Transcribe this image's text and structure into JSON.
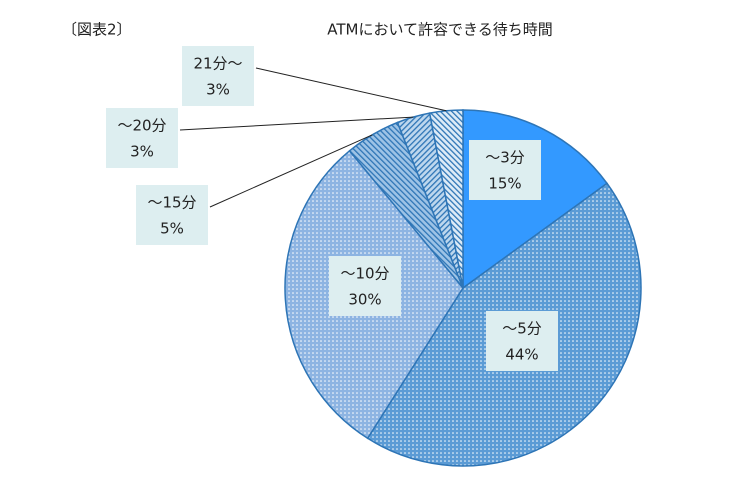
{
  "chart_data": {
    "type": "pie",
    "figure_label": "〔図表2〕",
    "title": "ATMにおいて許容できる待ち時間",
    "categories": [
      "～3分",
      "～5分",
      "～10分",
      "～15分",
      "～20分",
      "21分～"
    ],
    "values": [
      15,
      44,
      30,
      5,
      3,
      3
    ],
    "value_labels": [
      "15%",
      "44%",
      "30%",
      "5%",
      "3%",
      "3%"
    ],
    "colors": [
      "#3399ff",
      "#5b9bd5",
      "#8db4e2",
      "#9dc3e6",
      "#bdd7ee",
      "#ddebf7"
    ]
  }
}
